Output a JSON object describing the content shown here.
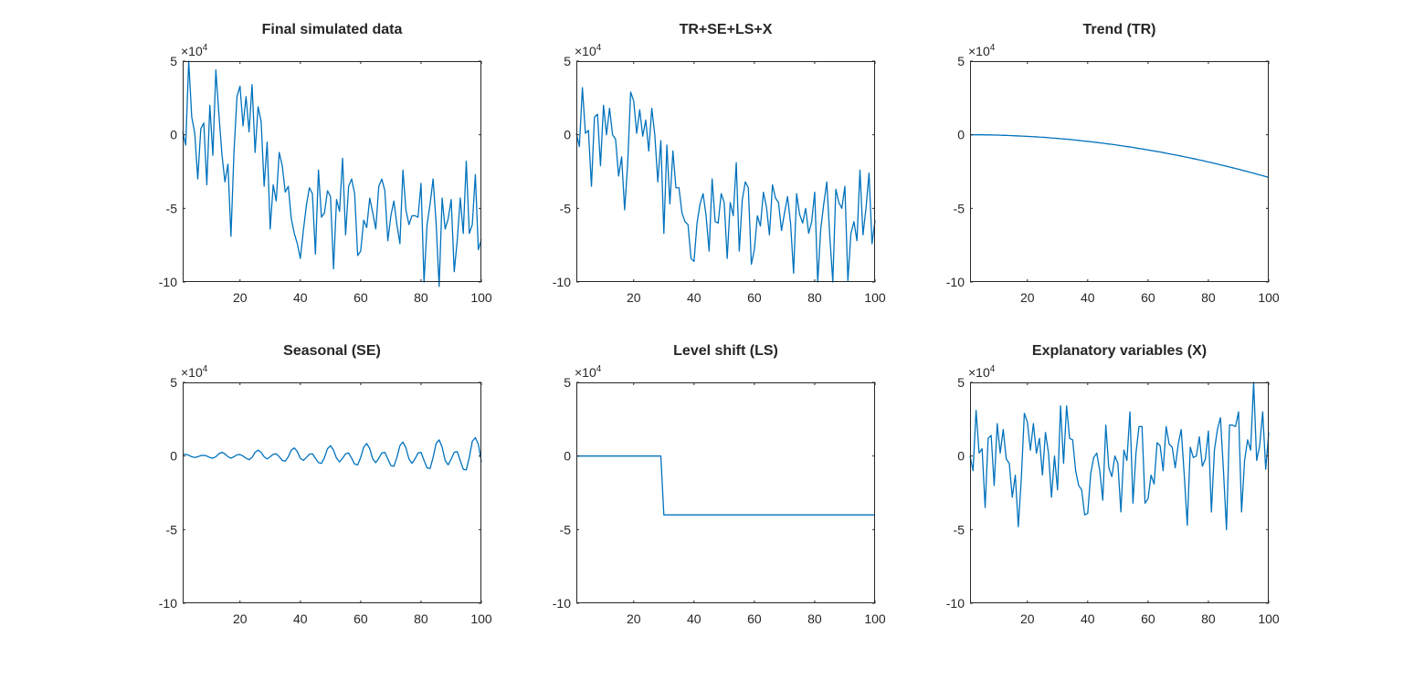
{
  "figure": {
    "background": "#ffffff",
    "line_color": "#0072BD",
    "axis_color": "#262626"
  },
  "axes_common": {
    "xlim": [
      1,
      100
    ],
    "ylim": [
      -10,
      5
    ],
    "xticks": [
      20,
      40,
      60,
      80,
      100
    ],
    "xtick_labels": [
      "20",
      "40",
      "60",
      "80",
      "100"
    ],
    "yticks": [
      5,
      0,
      -5,
      -10
    ],
    "ytick_labels": [
      "5",
      "0",
      "-5",
      "-10"
    ],
    "y_multiplier": "×10",
    "y_multiplier_exp": "4"
  },
  "chart_data": [
    {
      "type": "line",
      "title": "Final simulated data",
      "xlabel": "",
      "ylabel": "",
      "xlim": [
        1,
        100
      ],
      "ylim": [
        -100000,
        50000
      ],
      "y_scale_note": "values in units of 1e4",
      "grid": false,
      "values": [
        0.2,
        -0.7,
        5.0,
        1.2,
        0.1,
        -3.0,
        0.4,
        0.8,
        -3.4,
        2.0,
        -1.4,
        4.4,
        1.4,
        -1.3,
        -3.2,
        -2.0,
        -6.9,
        -1.2,
        2.6,
        3.3,
        0.6,
        2.6,
        0.2,
        3.4,
        -1.2,
        1.9,
        0.9,
        -3.5,
        -0.5,
        -6.4,
        -3.4,
        -4.5,
        -1.2,
        -2.1,
        -3.9,
        -3.5,
        -5.7,
        -6.7,
        -7.4,
        -8.4,
        -6.5,
        -4.8,
        -3.6,
        -4.0,
        -8.1,
        -2.4,
        -5.6,
        -5.3,
        -3.8,
        -4.2,
        -9.1,
        -4.4,
        -5.2,
        -1.6,
        -6.8,
        -3.5,
        -3.0,
        -4.0,
        -8.2,
        -7.9,
        -5.8,
        -6.3,
        -4.3,
        -5.3,
        -6.4,
        -3.5,
        -3.0,
        -3.8,
        -7.2,
        -5.5,
        -4.5,
        -6.1,
        -7.4,
        -2.4,
        -5.1,
        -6.1,
        -5.5,
        -5.5,
        -5.6,
        -3.3,
        -10.0,
        -6.1,
        -4.7,
        -3.0,
        -6.0,
        -10.3,
        -4.3,
        -6.4,
        -5.7,
        -4.4,
        -9.3,
        -7.2,
        -4.3,
        -6.7,
        -1.8,
        -6.7,
        -6.1,
        -2.7,
        -7.8,
        -7.1
      ]
    },
    {
      "type": "line",
      "title": "TR+SE+LS+X",
      "xlabel": "",
      "ylabel": "",
      "xlim": [
        1,
        100
      ],
      "ylim": [
        -100000,
        50000
      ],
      "y_scale_note": "values in units of 1e4",
      "grid": false,
      "values": [
        0.1,
        -0.8,
        3.2,
        0.1,
        0.3,
        -3.5,
        1.2,
        1.4,
        -2.1,
        2.0,
        0.0,
        1.8,
        0.0,
        -0.3,
        -2.8,
        -1.5,
        -5.1,
        -2.0,
        2.9,
        2.3,
        0.1,
        1.7,
        -0.1,
        1.0,
        -1.1,
        1.8,
        0.0,
        -3.2,
        -0.4,
        -6.7,
        -0.7,
        -4.7,
        -1.1,
        -3.6,
        -3.6,
        -5.3,
        -5.9,
        -6.1,
        -8.4,
        -8.6,
        -6.0,
        -4.7,
        -4.0,
        -5.5,
        -7.9,
        -3.0,
        -5.9,
        -6.0,
        -4.0,
        -4.6,
        -8.4,
        -4.6,
        -5.5,
        -1.9,
        -7.9,
        -4.4,
        -3.2,
        -3.6,
        -8.8,
        -7.8,
        -5.5,
        -6.2,
        -3.9,
        -4.9,
        -6.8,
        -3.4,
        -4.3,
        -4.6,
        -6.5,
        -5.3,
        -4.2,
        -6.0,
        -9.4,
        -4.0,
        -5.4,
        -6.0,
        -5.0,
        -6.7,
        -5.9,
        -3.9,
        -10.0,
        -6.4,
        -4.7,
        -3.2,
        -6.9,
        -10.0,
        -3.7,
        -4.6,
        -5.0,
        -3.5,
        -9.9,
        -6.7,
        -5.9,
        -7.2,
        -2.4,
        -6.8,
        -5.0,
        -2.6,
        -7.4,
        -5.8
      ]
    },
    {
      "type": "line",
      "title": "Trend (TR)",
      "xlabel": "",
      "ylabel": "",
      "xlim": [
        1,
        100
      ],
      "ylim": [
        -100000,
        50000
      ],
      "y_scale_note": "values in units of 1e4",
      "grid": false,
      "values": [
        0,
        0,
        0,
        0,
        0,
        -0.01,
        -0.01,
        -0.01,
        -0.02,
        -0.02,
        -0.03,
        -0.04,
        -0.04,
        -0.05,
        -0.06,
        -0.07,
        -0.08,
        -0.09,
        -0.1,
        -0.11,
        -0.12,
        -0.13,
        -0.14,
        -0.16,
        -0.17,
        -0.18,
        -0.2,
        -0.22,
        -0.23,
        -0.25,
        -0.27,
        -0.28,
        -0.3,
        -0.32,
        -0.34,
        -0.36,
        -0.38,
        -0.41,
        -0.43,
        -0.45,
        -0.47,
        -0.5,
        -0.52,
        -0.55,
        -0.57,
        -0.6,
        -0.63,
        -0.65,
        -0.68,
        -0.71,
        -0.74,
        -0.77,
        -0.8,
        -0.83,
        -0.86,
        -0.9,
        -0.93,
        -0.96,
        -1.0,
        -1.03,
        -1.07,
        -1.1,
        -1.14,
        -1.17,
        -1.21,
        -1.25,
        -1.29,
        -1.33,
        -1.37,
        -1.41,
        -1.45,
        -1.49,
        -1.53,
        -1.58,
        -1.62,
        -1.66,
        -1.71,
        -1.75,
        -1.8,
        -1.85,
        -1.89,
        -1.94,
        -1.99,
        -2.04,
        -2.09,
        -2.14,
        -2.19,
        -2.24,
        -2.29,
        -2.34,
        -2.4,
        -2.45,
        -2.5,
        -2.56,
        -2.61,
        -2.67,
        -2.73,
        -2.78,
        -2.84,
        -2.9
      ]
    },
    {
      "type": "line",
      "title": "Seasonal (SE)",
      "xlabel": "",
      "ylabel": "",
      "xlim": [
        1,
        100
      ],
      "ylim": [
        -100000,
        50000
      ],
      "y_scale_note": "values in units of 1e4",
      "grid": false,
      "values": [
        0.1,
        0.12,
        0.05,
        -0.05,
        -0.1,
        -0.05,
        0.03,
        0.05,
        0.0,
        -0.1,
        -0.15,
        -0.05,
        0.15,
        0.25,
        0.15,
        -0.05,
        -0.15,
        -0.05,
        0.08,
        0.1,
        0.0,
        -0.15,
        -0.25,
        -0.1,
        0.25,
        0.4,
        0.25,
        -0.05,
        -0.2,
        -0.05,
        0.12,
        0.15,
        -0.05,
        -0.3,
        -0.35,
        -0.05,
        0.4,
        0.55,
        0.3,
        -0.15,
        -0.3,
        -0.1,
        0.12,
        0.15,
        -0.15,
        -0.45,
        -0.5,
        -0.1,
        0.5,
        0.7,
        0.4,
        -0.15,
        -0.4,
        -0.15,
        0.15,
        0.2,
        -0.15,
        -0.55,
        -0.6,
        -0.1,
        0.6,
        0.85,
        0.5,
        -0.2,
        -0.45,
        -0.15,
        0.2,
        0.25,
        -0.2,
        -0.65,
        -0.7,
        -0.1,
        0.7,
        0.95,
        0.55,
        -0.2,
        -0.5,
        -0.2,
        0.2,
        0.25,
        -0.3,
        -0.8,
        -0.85,
        -0.1,
        0.85,
        1.1,
        0.6,
        -0.3,
        -0.6,
        -0.2,
        0.25,
        0.3,
        -0.3,
        -0.9,
        -0.95,
        -0.1,
        1.0,
        1.25,
        0.8,
        -0.4
      ]
    },
    {
      "type": "line",
      "title": "Level shift (LS)",
      "xlabel": "",
      "ylabel": "",
      "xlim": [
        1,
        100
      ],
      "ylim": [
        -100000,
        50000
      ],
      "y_scale_note": "values in units of 1e4",
      "grid": false,
      "values": [
        0,
        0,
        0,
        0,
        0,
        0,
        0,
        0,
        0,
        0,
        0,
        0,
        0,
        0,
        0,
        0,
        0,
        0,
        0,
        0,
        0,
        0,
        0,
        0,
        0,
        0,
        0,
        0,
        0,
        -4,
        -4,
        -4,
        -4,
        -4,
        -4,
        -4,
        -4,
        -4,
        -4,
        -4,
        -4,
        -4,
        -4,
        -4,
        -4,
        -4,
        -4,
        -4,
        -4,
        -4,
        -4,
        -4,
        -4,
        -4,
        -4,
        -4,
        -4,
        -4,
        -4,
        -4,
        -4,
        -4,
        -4,
        -4,
        -4,
        -4,
        -4,
        -4,
        -4,
        -4,
        -4,
        -4,
        -4,
        -4,
        -4,
        -4,
        -4,
        -4,
        -4,
        -4,
        -4,
        -4,
        -4,
        -4,
        -4,
        -4,
        -4,
        -4,
        -4,
        -4,
        -4,
        -4,
        -4,
        -4,
        -4,
        -4,
        -4,
        -4,
        -4,
        -4
      ]
    },
    {
      "type": "line",
      "title": "Explanatory variables (X)",
      "xlabel": "",
      "ylabel": "",
      "xlim": [
        1,
        100
      ],
      "ylim": [
        -100000,
        50000
      ],
      "y_scale_note": "values in units of 1e4",
      "grid": false,
      "values": [
        0.0,
        -1.0,
        3.1,
        0.2,
        0.5,
        -3.5,
        1.2,
        1.4,
        -2.0,
        2.2,
        0.2,
        1.8,
        -0.2,
        -0.5,
        -2.8,
        -1.3,
        -4.8,
        -1.5,
        2.9,
        2.3,
        0.4,
        2.2,
        0.2,
        1.2,
        -1.3,
        1.6,
        0.2,
        -2.8,
        0.0,
        -2.3,
        3.4,
        -0.5,
        3.4,
        1.2,
        1.1,
        -1.0,
        -2.0,
        -2.3,
        -4.0,
        -3.9,
        -1.2,
        -0.1,
        0.2,
        -1.0,
        -3.0,
        2.1,
        -0.8,
        -1.4,
        0.0,
        -0.5,
        -3.8,
        0.4,
        -0.3,
        3.0,
        -3.2,
        0.2,
        2.0,
        2.0,
        -3.2,
        -2.9,
        -1.3,
        -1.9,
        0.9,
        0.7,
        -1.0,
        2.0,
        0.8,
        0.6,
        -0.8,
        0.8,
        1.8,
        -1.3,
        -4.7,
        0.6,
        -0.1,
        0.0,
        1.3,
        -0.7,
        -0.2,
        1.7,
        -3.8,
        0.4,
        1.8,
        2.6,
        -1.0,
        -5.0,
        2.1,
        2.1,
        2.0,
        3.0,
        -3.8,
        -0.3,
        1.1,
        0.4,
        5.0,
        -0.3,
        0.7,
        3.0,
        -0.9,
        1.6
      ]
    }
  ],
  "panels": [
    {
      "title": "Final simulated data"
    },
    {
      "title": "TR+SE+LS+X"
    },
    {
      "title": "Trend (TR)"
    },
    {
      "title": "Seasonal (SE)"
    },
    {
      "title": "Level shift (LS)"
    },
    {
      "title": "Explanatory variables (X)"
    }
  ]
}
